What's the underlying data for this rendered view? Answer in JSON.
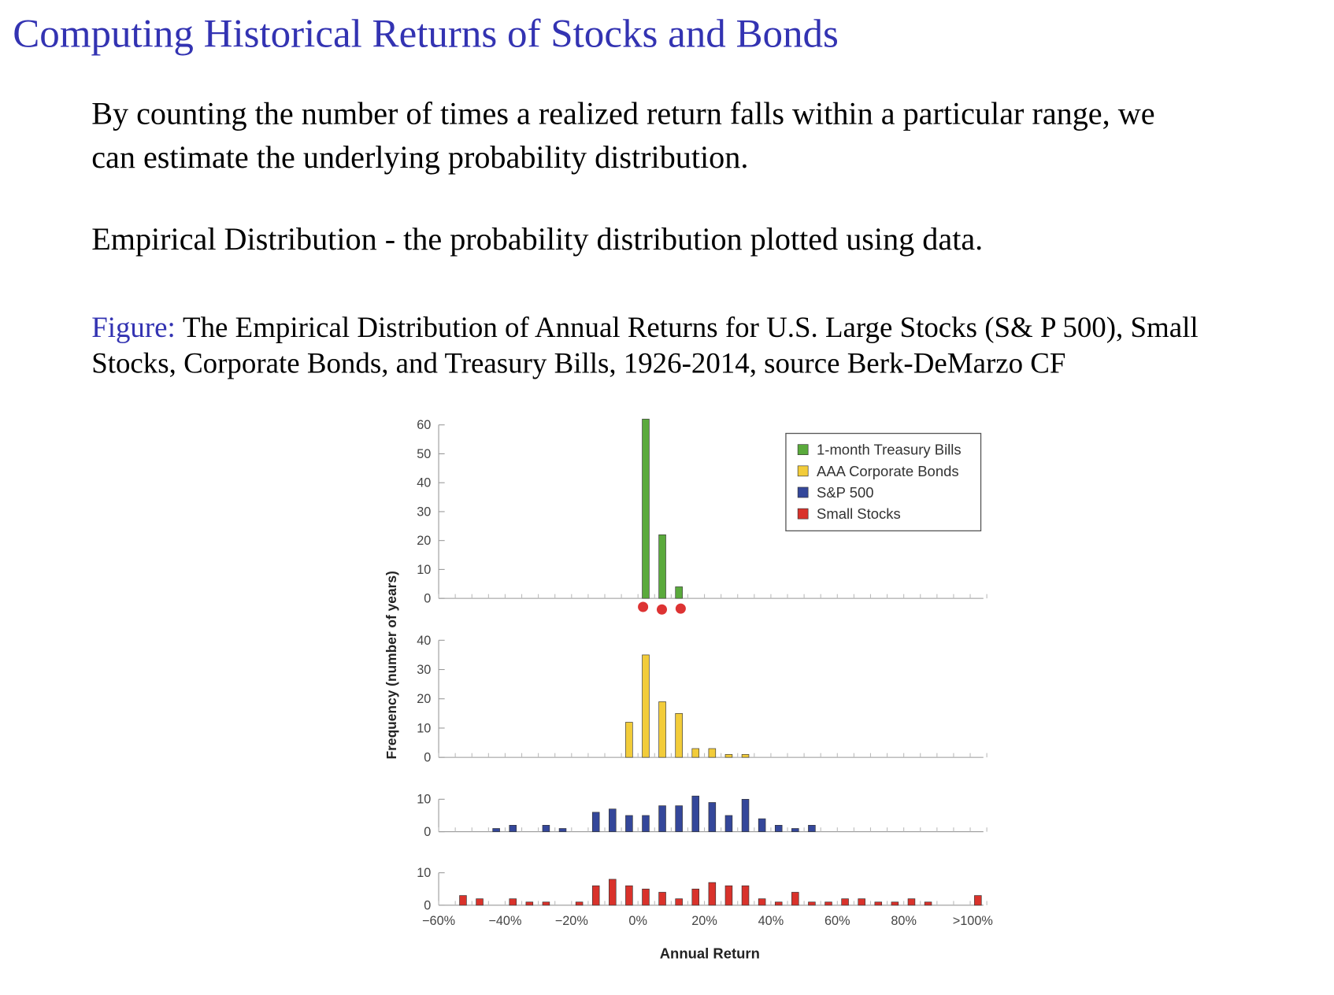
{
  "title": "Computing Historical Returns of Stocks and Bonds",
  "paragraphs": [
    [
      "By counting the number of times a realized return falls within a particular range, we",
      "can estimate the underlying probability distribution."
    ],
    [
      "Empirical Distribution - the probability distribution plotted using data."
    ]
  ],
  "caption": {
    "label": "Figure:",
    "lines": [
      "The Empirical Distribution of Annual Returns for U.S. Large Stocks (S& P 500), Small",
      "Stocks, Corporate Bonds, and Treasury Bills, 1926-2014, source Berk-DeMarzo CF"
    ]
  },
  "chart_data": [
    {
      "type": "histogram",
      "name": "1-month Treasury Bills",
      "color": "#5aaa3c",
      "bins": [
        -60,
        -55,
        -50,
        -45,
        -40,
        -35,
        -30,
        -25,
        -20,
        -15,
        -10,
        -5,
        0,
        5,
        10,
        15,
        20,
        25,
        30,
        35,
        40,
        45,
        50,
        55,
        60,
        65,
        70,
        75,
        80,
        85,
        90,
        95,
        100,
        105
      ],
      "values": [
        0,
        0,
        0,
        0,
        0,
        0,
        0,
        0,
        0,
        0,
        0,
        0,
        62,
        22,
        4,
        0,
        0,
        0,
        0,
        0,
        0,
        0,
        0,
        0,
        0,
        0,
        0,
        0,
        0,
        0,
        0,
        0,
        0
      ],
      "xlim": [
        -60,
        105
      ],
      "ylim": [
        0,
        63
      ],
      "yticks": [
        0,
        10,
        20,
        30,
        40,
        50,
        60
      ],
      "ylabel": "Frequency (number of years)",
      "legend": "top-right"
    },
    {
      "type": "histogram",
      "name": "AAA Corporate Bonds",
      "color": "#f2cc3a",
      "bins": [
        -60,
        -55,
        -50,
        -45,
        -40,
        -35,
        -30,
        -25,
        -20,
        -15,
        -10,
        -5,
        0,
        5,
        10,
        15,
        20,
        25,
        30,
        35,
        40,
        45,
        50,
        55,
        60,
        65,
        70,
        75,
        80,
        85,
        90,
        95,
        100,
        105
      ],
      "values": [
        0,
        0,
        0,
        0,
        0,
        0,
        0,
        0,
        0,
        0,
        0,
        12,
        35,
        19,
        15,
        3,
        3,
        1,
        1,
        0,
        0,
        0,
        0,
        0,
        0,
        0,
        0,
        0,
        0,
        0,
        0,
        0,
        0
      ],
      "xlim": [
        -60,
        105
      ],
      "ylim": [
        0,
        40
      ],
      "yticks": [
        0,
        10,
        20,
        30,
        40
      ]
    },
    {
      "type": "histogram",
      "name": "S&P 500",
      "color": "#34479a",
      "bins": [
        -60,
        -55,
        -50,
        -45,
        -40,
        -35,
        -30,
        -25,
        -20,
        -15,
        -10,
        -5,
        0,
        5,
        10,
        15,
        20,
        25,
        30,
        35,
        40,
        45,
        50,
        55,
        60,
        65,
        70,
        75,
        80,
        85,
        90,
        95,
        100,
        105
      ],
      "values": [
        0,
        0,
        0,
        1,
        2,
        0,
        2,
        1,
        0,
        6,
        7,
        5,
        5,
        8,
        8,
        11,
        9,
        5,
        10,
        4,
        2,
        1,
        2,
        0,
        0,
        0,
        0,
        0,
        0,
        0,
        0,
        0,
        0
      ],
      "xlim": [
        -60,
        105
      ],
      "ylim": [
        0,
        11
      ],
      "yticks": [
        0,
        10
      ]
    },
    {
      "type": "histogram",
      "name": "Small Stocks",
      "color": "#d9322b",
      "bins": [
        -60,
        -55,
        -50,
        -45,
        -40,
        -35,
        -30,
        -25,
        -20,
        -15,
        -10,
        -5,
        0,
        5,
        10,
        15,
        20,
        25,
        30,
        35,
        40,
        45,
        50,
        55,
        60,
        65,
        70,
        75,
        80,
        85,
        90,
        95,
        100,
        105
      ],
      "values": [
        0,
        3,
        2,
        0,
        2,
        1,
        1,
        0,
        1,
        6,
        8,
        6,
        5,
        4,
        2,
        5,
        7,
        6,
        6,
        2,
        1,
        4,
        1,
        1,
        2,
        2,
        1,
        1,
        2,
        1,
        0,
        0,
        3
      ],
      "xlim": [
        -60,
        105
      ],
      "ylim": [
        0,
        11
      ],
      "yticks": [
        0,
        10
      ],
      "xticks": [
        {
          "value": -60,
          "label": "−60%"
        },
        {
          "value": -40,
          "label": "−40%"
        },
        {
          "value": -20,
          "label": "−20%"
        },
        {
          "value": 0,
          "label": "0%"
        },
        {
          "value": 20,
          "label": "20%"
        },
        {
          "value": 40,
          "label": "40%"
        },
        {
          "value": 60,
          "label": "60%"
        },
        {
          "value": 80,
          "label": "80%"
        },
        {
          "value": 100,
          "label": ">100%"
        }
      ],
      "xlabel": "Annual Return"
    }
  ]
}
